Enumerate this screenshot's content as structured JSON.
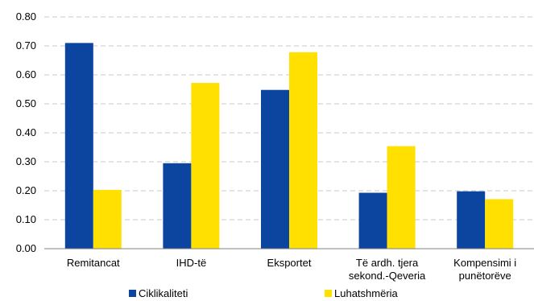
{
  "chart_data": {
    "type": "bar",
    "title": "",
    "xlabel": "",
    "ylabel": "",
    "ylim": [
      0,
      0.8
    ],
    "yticks": [
      "0.00",
      "0.10",
      "0.20",
      "0.30",
      "0.40",
      "0.50",
      "0.60",
      "0.70",
      "0.80"
    ],
    "grid": "horizontal dashed",
    "legend_position": "bottom",
    "categories": [
      [
        "Remitancat"
      ],
      [
        "IHD-të"
      ],
      [
        "Eksportet"
      ],
      [
        "Të ardh. tjera",
        "sekond.-Qeveria"
      ],
      [
        "Kompensimi i",
        "punëtorëve"
      ]
    ],
    "series": [
      {
        "name": "Ciklikaliteti",
        "color": "#0b45a0",
        "values": [
          0.71,
          0.295,
          0.548,
          0.193,
          0.198
        ]
      },
      {
        "name": "Luhatshmëria",
        "color": "#ffe000",
        "values": [
          0.203,
          0.572,
          0.678,
          0.354,
          0.171
        ]
      }
    ]
  }
}
